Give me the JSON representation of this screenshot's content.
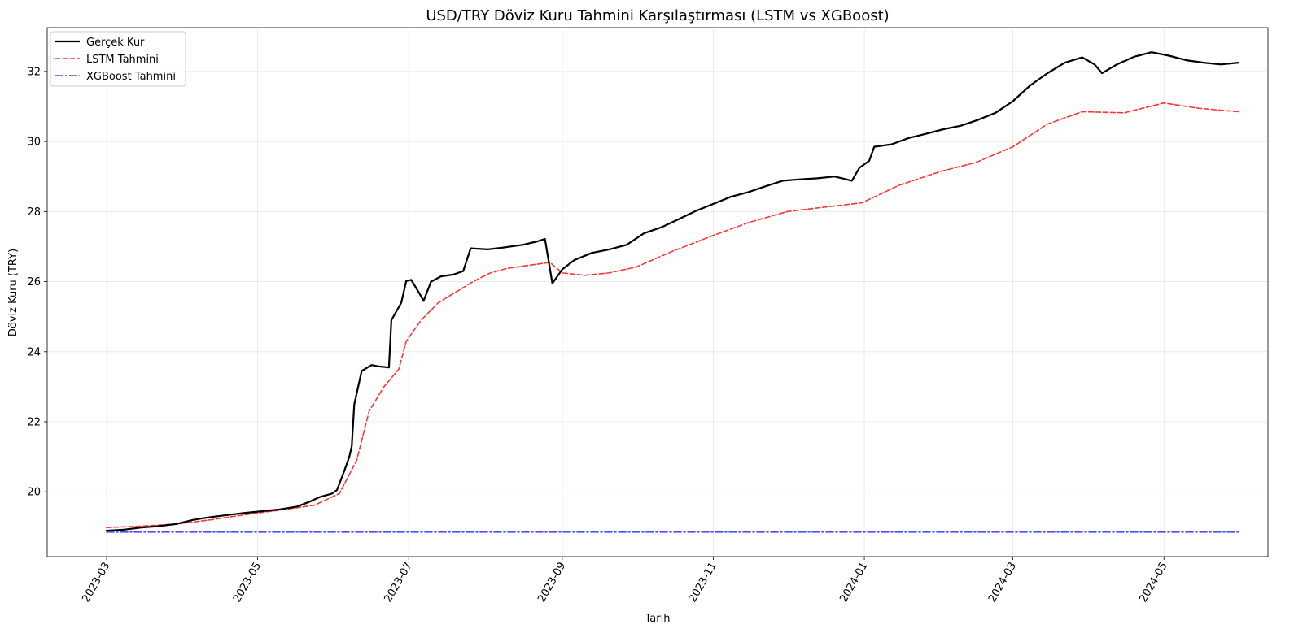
{
  "chart_data": {
    "type": "line",
    "title": "USD/TRY Döviz Kuru Tahmini Karşılaştırması (LSTM vs XGBoost)",
    "xlabel": "Tarih",
    "ylabel": "Döviz Kuru (TRY)",
    "x_axis_type": "date",
    "xlim": [
      "2023-02-05",
      "2024-06-12"
    ],
    "ylim": [
      18.15,
      33.25
    ],
    "x_ticks": [
      "2023-03-01",
      "2023-05-01",
      "2023-07-01",
      "2023-09-01",
      "2023-11-01",
      "2024-01-01",
      "2024-03-01",
      "2024-05-01"
    ],
    "x_tick_labels": [
      "2023-03",
      "2023-05",
      "2023-07",
      "2023-09",
      "2023-11",
      "2024-01",
      "2024-03",
      "2024-05"
    ],
    "x_tick_rotation_deg": 60,
    "y_ticks": [
      20,
      22,
      24,
      26,
      28,
      30,
      32
    ],
    "y_tick_labels": [
      "20",
      "22",
      "24",
      "26",
      "28",
      "30",
      "32"
    ],
    "grid": true,
    "legend_position": "top-left",
    "series": [
      {
        "name": "Gerçek Kur",
        "color": "#000000",
        "style": "solid",
        "points": [
          [
            "2023-03-01",
            18.89
          ],
          [
            "2023-03-08",
            18.92
          ],
          [
            "2023-03-15",
            18.98
          ],
          [
            "2023-03-22",
            19.02
          ],
          [
            "2023-03-29",
            19.08
          ],
          [
            "2023-04-05",
            19.2
          ],
          [
            "2023-04-12",
            19.28
          ],
          [
            "2023-04-19",
            19.34
          ],
          [
            "2023-04-26",
            19.4
          ],
          [
            "2023-05-03",
            19.45
          ],
          [
            "2023-05-10",
            19.5
          ],
          [
            "2023-05-17",
            19.58
          ],
          [
            "2023-05-22",
            19.72
          ],
          [
            "2023-05-26",
            19.85
          ],
          [
            "2023-05-31",
            19.95
          ],
          [
            "2023-06-02",
            20.05
          ],
          [
            "2023-06-05",
            20.6
          ],
          [
            "2023-06-07",
            21.0
          ],
          [
            "2023-06-08",
            21.3
          ],
          [
            "2023-06-09",
            22.5
          ],
          [
            "2023-06-12",
            23.45
          ],
          [
            "2023-06-16",
            23.62
          ],
          [
            "2023-06-19",
            23.58
          ],
          [
            "2023-06-23",
            23.55
          ],
          [
            "2023-06-24",
            24.9
          ],
          [
            "2023-06-28",
            25.4
          ],
          [
            "2023-06-30",
            26.02
          ],
          [
            "2023-07-02",
            26.05
          ],
          [
            "2023-07-05",
            25.7
          ],
          [
            "2023-07-07",
            25.45
          ],
          [
            "2023-07-10",
            26.0
          ],
          [
            "2023-07-14",
            26.15
          ],
          [
            "2023-07-19",
            26.2
          ],
          [
            "2023-07-23",
            26.3
          ],
          [
            "2023-07-26",
            26.95
          ],
          [
            "2023-08-02",
            26.92
          ],
          [
            "2023-08-09",
            26.98
          ],
          [
            "2023-08-16",
            27.05
          ],
          [
            "2023-08-22",
            27.15
          ],
          [
            "2023-08-25",
            27.22
          ],
          [
            "2023-08-28",
            25.95
          ],
          [
            "2023-09-01",
            26.35
          ],
          [
            "2023-09-06",
            26.62
          ],
          [
            "2023-09-13",
            26.82
          ],
          [
            "2023-09-20",
            26.92
          ],
          [
            "2023-09-27",
            27.05
          ],
          [
            "2023-10-04",
            27.38
          ],
          [
            "2023-10-11",
            27.55
          ],
          [
            "2023-10-18",
            27.78
          ],
          [
            "2023-10-25",
            28.02
          ],
          [
            "2023-11-01",
            28.22
          ],
          [
            "2023-11-08",
            28.42
          ],
          [
            "2023-11-15",
            28.55
          ],
          [
            "2023-11-22",
            28.72
          ],
          [
            "2023-11-29",
            28.88
          ],
          [
            "2023-12-06",
            28.92
          ],
          [
            "2023-12-13",
            28.95
          ],
          [
            "2023-12-20",
            29.0
          ],
          [
            "2023-12-27",
            28.88
          ],
          [
            "2023-12-30",
            29.25
          ],
          [
            "2024-01-03",
            29.45
          ],
          [
            "2024-01-05",
            29.85
          ],
          [
            "2024-01-12",
            29.92
          ],
          [
            "2024-01-19",
            30.1
          ],
          [
            "2024-01-26",
            30.22
          ],
          [
            "2024-02-02",
            30.35
          ],
          [
            "2024-02-09",
            30.45
          ],
          [
            "2024-02-16",
            30.62
          ],
          [
            "2024-02-23",
            30.82
          ],
          [
            "2024-03-01",
            31.15
          ],
          [
            "2024-03-08",
            31.6
          ],
          [
            "2024-03-15",
            31.95
          ],
          [
            "2024-03-22",
            32.25
          ],
          [
            "2024-03-29",
            32.4
          ],
          [
            "2024-04-03",
            32.2
          ],
          [
            "2024-04-06",
            31.95
          ],
          [
            "2024-04-12",
            32.2
          ],
          [
            "2024-04-19",
            32.42
          ],
          [
            "2024-04-26",
            32.55
          ],
          [
            "2024-05-03",
            32.45
          ],
          [
            "2024-05-10",
            32.32
          ],
          [
            "2024-05-17",
            32.25
          ],
          [
            "2024-05-24",
            32.2
          ],
          [
            "2024-05-31",
            32.25
          ]
        ]
      },
      {
        "name": "LSTM Tahmini",
        "color": "#ff0000",
        "style": "dashed",
        "points": [
          [
            "2023-03-01",
            18.98
          ],
          [
            "2023-03-15",
            19.02
          ],
          [
            "2023-03-29",
            19.08
          ],
          [
            "2023-04-12",
            19.2
          ],
          [
            "2023-04-26",
            19.35
          ],
          [
            "2023-05-10",
            19.48
          ],
          [
            "2023-05-24",
            19.62
          ],
          [
            "2023-06-03",
            19.95
          ],
          [
            "2023-06-10",
            20.9
          ],
          [
            "2023-06-15",
            22.3
          ],
          [
            "2023-06-21",
            23.0
          ],
          [
            "2023-06-27",
            23.5
          ],
          [
            "2023-06-30",
            24.3
          ],
          [
            "2023-07-06",
            24.9
          ],
          [
            "2023-07-13",
            25.4
          ],
          [
            "2023-07-20",
            25.7
          ],
          [
            "2023-07-27",
            26.0
          ],
          [
            "2023-08-03",
            26.25
          ],
          [
            "2023-08-10",
            26.38
          ],
          [
            "2023-08-17",
            26.45
          ],
          [
            "2023-08-27",
            26.55
          ],
          [
            "2023-09-01",
            26.25
          ],
          [
            "2023-09-10",
            26.18
          ],
          [
            "2023-09-20",
            26.25
          ],
          [
            "2023-10-01",
            26.42
          ],
          [
            "2023-10-15",
            26.85
          ],
          [
            "2023-11-01",
            27.32
          ],
          [
            "2023-11-15",
            27.68
          ],
          [
            "2023-12-01",
            28.0
          ],
          [
            "2023-12-15",
            28.12
          ],
          [
            "2023-12-31",
            28.25
          ],
          [
            "2024-01-15",
            28.75
          ],
          [
            "2024-02-01",
            29.15
          ],
          [
            "2024-02-15",
            29.4
          ],
          [
            "2024-03-01",
            29.85
          ],
          [
            "2024-03-15",
            30.5
          ],
          [
            "2024-03-29",
            30.85
          ],
          [
            "2024-04-15",
            30.82
          ],
          [
            "2024-05-01",
            31.1
          ],
          [
            "2024-05-15",
            30.95
          ],
          [
            "2024-05-31",
            30.85
          ]
        ]
      },
      {
        "name": "XGBoost Tahmini",
        "color": "#0000ff",
        "style": "dashdot",
        "points": [
          [
            "2023-03-01",
            18.85
          ],
          [
            "2024-05-31",
            18.85
          ]
        ]
      }
    ]
  }
}
